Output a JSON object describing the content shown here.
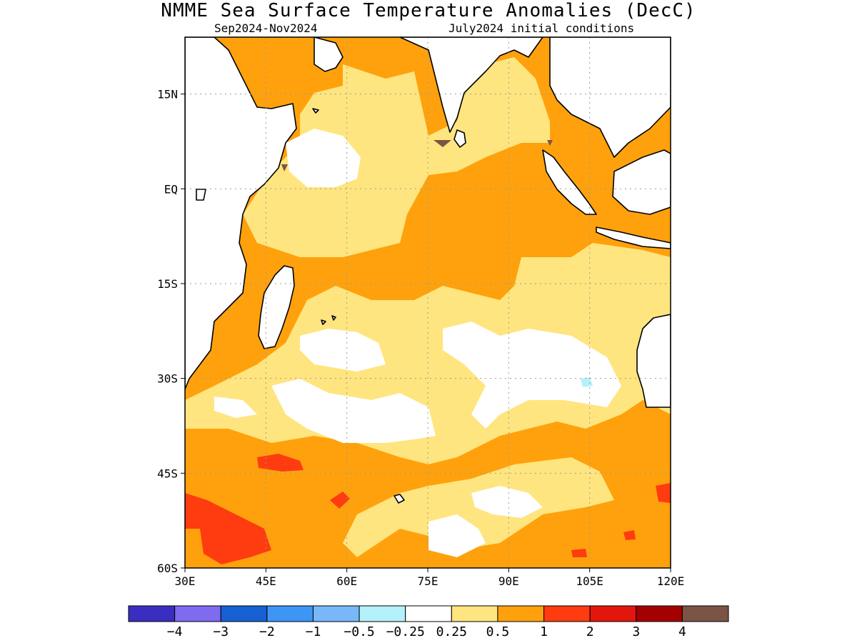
{
  "title": "NMME Sea Surface Temperature Anomalies (DecC)",
  "period": "Sep2024-Nov2024",
  "init": "July2024 initial conditions",
  "colors": {
    "land": "#ffffff",
    "neutral": "#ffffff",
    "warm_025": "#ffe57f",
    "warm_05": "#ffa10c",
    "warm_1": "#ff3b10",
    "warm_2": "#e3160d",
    "warm_3": "#a50000",
    "warm_4": "#7b5446",
    "cool_025": "#b5f1fb"
  },
  "map": {
    "lon_range": [
      30,
      120
    ],
    "lat_range": [
      -60,
      24
    ],
    "lon_ticks": [
      "30E",
      "45E",
      "60E",
      "75E",
      "90E",
      "105E",
      "120E"
    ],
    "lat_ticks": [
      "15N",
      "EQ",
      "15S",
      "30S",
      "45S",
      "60S"
    ]
  },
  "colorbar": {
    "colors": [
      "#3a2ec0",
      "#7f6bef",
      "#1760d2",
      "#3d95f4",
      "#78b8f9",
      "#b5f1fb",
      "#ffffff",
      "#ffe57f",
      "#ffa10c",
      "#ff3b10",
      "#e3160d",
      "#a50000",
      "#7b5446"
    ],
    "labels": [
      "−4",
      "−3",
      "−2",
      "−1",
      "−0.5",
      "−0.25",
      "0.25",
      "0.5",
      "1",
      "2",
      "3",
      "4"
    ]
  }
}
